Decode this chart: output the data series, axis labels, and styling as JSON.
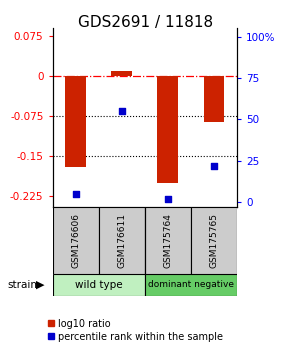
{
  "title": "GDS2691 / 11818",
  "samples": [
    "GSM176606",
    "GSM176611",
    "GSM175764",
    "GSM175765"
  ],
  "log10_ratio": [
    -0.17,
    0.01,
    -0.2,
    -0.085
  ],
  "percentile_rank": [
    5,
    55,
    2,
    22
  ],
  "ylim_left": [
    -0.245,
    0.09
  ],
  "ylim_right": [
    -2.9,
    105
  ],
  "yticks_left": [
    0.075,
    0,
    -0.075,
    -0.15,
    -0.225
  ],
  "yticks_right": [
    100,
    75,
    50,
    25,
    0
  ],
  "bar_color": "#cc2200",
  "point_color": "#0000cc",
  "bar_width": 0.45,
  "legend_ratio_label": "log10 ratio",
  "legend_pct_label": "percentile rank within the sample",
  "title_fontsize": 11,
  "tick_fontsize": 7.5,
  "group_colors": [
    "#b8eeb8",
    "#66cc66"
  ],
  "wild_type_color": "#c0f0c0",
  "dominant_negative_color": "#66cc66"
}
